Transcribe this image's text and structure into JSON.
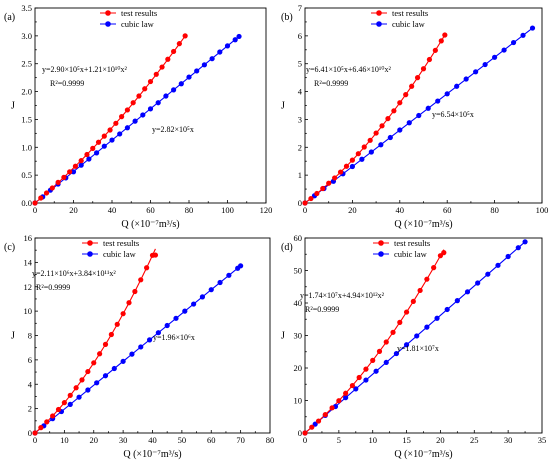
{
  "chart_data": [
    {
      "type": "scatter",
      "panel_tag": "(a)",
      "xlabel": "Q (×10⁻⁷m³/s)",
      "ylabel": "J",
      "xlim": [
        0,
        120
      ],
      "ylim": [
        0,
        3.5
      ],
      "xticks": [
        "0",
        "20",
        "40",
        "60",
        "80",
        "100",
        "120"
      ],
      "yticks": [
        "0.0",
        "0.5",
        "1.0",
        "1.5",
        "2.0",
        "2.5",
        "3.0",
        "3.5"
      ],
      "legend": {
        "placement": "top-center",
        "entries": [
          "test results",
          "cubic law"
        ]
      },
      "fit_equation": "y=2.90×10⁵x+1.21×10¹⁰x²",
      "r_squared": "R²=0.9999",
      "cubic_equation": "y=2.82×10⁵x",
      "series": [
        {
          "name": "test results",
          "color": "#ff0000",
          "x": [
            0,
            3,
            6,
            9,
            12,
            15,
            18,
            21,
            24,
            27,
            30,
            33,
            36,
            39,
            42,
            45,
            48,
            51,
            54,
            57,
            60,
            63,
            66,
            69,
            72,
            75,
            78
          ],
          "y": [
            0.0,
            0.09,
            0.18,
            0.27,
            0.37,
            0.46,
            0.56,
            0.66,
            0.76,
            0.87,
            0.98,
            1.09,
            1.2,
            1.31,
            1.43,
            1.55,
            1.67,
            1.8,
            1.92,
            2.05,
            2.18,
            2.31,
            2.44,
            2.58,
            2.72,
            2.86,
            3.0
          ]
        },
        {
          "name": "cubic law",
          "color": "#0000ff",
          "x": [
            0,
            4,
            8,
            12,
            16,
            20,
            24,
            28,
            32,
            36,
            40,
            44,
            48,
            52,
            56,
            60,
            64,
            68,
            72,
            76,
            80,
            84,
            88,
            92,
            96,
            100,
            104,
            106
          ],
          "y": [
            0.0,
            0.11,
            0.23,
            0.34,
            0.45,
            0.56,
            0.68,
            0.79,
            0.9,
            1.02,
            1.13,
            1.24,
            1.35,
            1.47,
            1.58,
            1.69,
            1.8,
            1.92,
            2.03,
            2.14,
            2.26,
            2.37,
            2.48,
            2.59,
            2.71,
            2.82,
            2.93,
            2.99
          ]
        }
      ],
      "fit_curve": {
        "a": 0.029,
        "b": 0.000121
      },
      "cubic_line": {
        "slope": 0.0282
      }
    },
    {
      "type": "scatter",
      "panel_tag": "(b)",
      "xlabel": "Q (×10⁻⁷m³/s)",
      "ylabel": "J",
      "xlim": [
        0,
        100
      ],
      "ylim": [
        0,
        7
      ],
      "xticks": [
        "0",
        "20",
        "40",
        "60",
        "80",
        "100"
      ],
      "yticks": [
        "0",
        "1",
        "2",
        "3",
        "4",
        "5",
        "6",
        "7"
      ],
      "legend": {
        "placement": "top-center",
        "entries": [
          "test results",
          "cubic law"
        ]
      },
      "fit_equation": "y=6.41×10⁵x+6.46×10¹⁰x²",
      "r_squared": "R²=0.9999",
      "cubic_equation": "y=6.54×10⁵x",
      "series": [
        {
          "name": "test results",
          "color": "#ff0000",
          "x": [
            0,
            2.5,
            5,
            7.5,
            10,
            12.5,
            15,
            17.5,
            20,
            22.5,
            25,
            27.5,
            30,
            32.5,
            35,
            37.5,
            40,
            42.5,
            45,
            47.5,
            50,
            52.5,
            55,
            57.5,
            59
          ],
          "y": [
            0.0,
            0.16,
            0.34,
            0.52,
            0.71,
            0.9,
            1.11,
            1.32,
            1.54,
            1.77,
            2.01,
            2.25,
            2.51,
            2.77,
            3.03,
            3.31,
            3.6,
            3.89,
            4.19,
            4.5,
            4.82,
            5.15,
            5.48,
            5.82,
            6.03
          ]
        },
        {
          "name": "cubic law",
          "color": "#0000ff",
          "x": [
            0,
            4,
            8,
            12,
            16,
            20,
            24,
            28,
            32,
            36,
            40,
            44,
            48,
            52,
            56,
            60,
            64,
            68,
            72,
            76,
            80,
            84,
            88,
            92,
            96
          ],
          "y": [
            0.0,
            0.26,
            0.52,
            0.78,
            1.05,
            1.31,
            1.57,
            1.83,
            2.09,
            2.35,
            2.62,
            2.88,
            3.14,
            3.4,
            3.66,
            3.92,
            4.19,
            4.45,
            4.71,
            4.97,
            5.23,
            5.49,
            5.76,
            6.02,
            6.28
          ]
        }
      ],
      "fit_curve": {
        "a": 0.0641,
        "b": 0.000646
      },
      "cubic_line": {
        "slope": 0.0654
      }
    },
    {
      "type": "scatter",
      "panel_tag": "(c)",
      "xlabel": "Q (×10⁻⁷m³/s)",
      "ylabel": "J",
      "xlim": [
        0,
        80
      ],
      "ylim": [
        0,
        16
      ],
      "xticks": [
        "0",
        "10",
        "20",
        "30",
        "40",
        "50",
        "60",
        "70",
        "80"
      ],
      "yticks": [
        "0",
        "2",
        "4",
        "6",
        "8",
        "10",
        "12",
        "14",
        "16"
      ],
      "legend": {
        "placement": "top-center",
        "entries": [
          "test results",
          "cubic law"
        ]
      },
      "fit_equation": "y=2.11×10⁶x+3.84×10¹¹x²",
      "r_squared": "R²=0.9999",
      "cubic_equation": "y=1.96×10⁶x",
      "series": [
        {
          "name": "test results",
          "color": "#ff0000",
          "x": [
            0,
            2,
            4,
            6,
            8,
            10,
            12,
            14,
            16,
            18,
            20,
            22,
            24,
            26,
            28,
            30,
            32,
            34,
            36,
            38,
            40,
            41
          ],
          "y": [
            0.0,
            0.44,
            0.91,
            1.4,
            1.93,
            2.49,
            3.09,
            3.71,
            4.36,
            5.04,
            5.76,
            6.5,
            7.27,
            8.08,
            8.92,
            9.79,
            10.69,
            11.61,
            12.57,
            13.56,
            14.58,
            14.6
          ]
        },
        {
          "name": "cubic law",
          "color": "#0000ff",
          "x": [
            0,
            3,
            6,
            9,
            12,
            15,
            18,
            21,
            24,
            27,
            30,
            33,
            36,
            39,
            42,
            45,
            48,
            51,
            54,
            57,
            60,
            63,
            66,
            69,
            70
          ],
          "y": [
            0.0,
            0.59,
            1.18,
            1.76,
            2.35,
            2.94,
            3.53,
            4.12,
            4.7,
            5.29,
            5.88,
            6.47,
            7.06,
            7.64,
            8.23,
            8.82,
            9.41,
            10.0,
            10.58,
            11.17,
            11.76,
            12.35,
            12.94,
            13.52,
            13.72
          ]
        }
      ],
      "fit_curve": {
        "a": 0.211,
        "b": 0.00384
      },
      "cubic_line": {
        "slope": 0.196
      }
    },
    {
      "type": "scatter",
      "panel_tag": "(d)",
      "xlabel": "Q (×10⁻⁷m³/s)",
      "ylabel": "J",
      "xlim": [
        0,
        35
      ],
      "ylim": [
        0,
        60
      ],
      "xticks": [
        "0",
        "5",
        "10",
        "15",
        "20",
        "25",
        "30",
        "35"
      ],
      "yticks": [
        "0",
        "10",
        "20",
        "30",
        "40",
        "50",
        "60"
      ],
      "legend": {
        "placement": "top-center",
        "entries": [
          "test results",
          "cubic law"
        ]
      },
      "fit_equation": "y=1.74×10⁷x+4.94×10¹²x²",
      "r_squared": "R²=0.9999",
      "cubic_equation": "y=1.81×10⁷x",
      "series": [
        {
          "name": "test results",
          "color": "#ff0000",
          "x": [
            0,
            1,
            2,
            3,
            4,
            5,
            6,
            7,
            8,
            9,
            10,
            11,
            12,
            13,
            14,
            15,
            16,
            17,
            18,
            19,
            20,
            20.5
          ],
          "y": [
            0.0,
            1.79,
            3.68,
            5.66,
            7.75,
            9.94,
            12.22,
            14.6,
            17.08,
            19.66,
            22.34,
            25.12,
            28.0,
            30.97,
            34.04,
            37.21,
            40.49,
            43.86,
            47.33,
            50.89,
            54.56,
            55.5
          ]
        },
        {
          "name": "cubic law",
          "color": "#0000ff",
          "x": [
            0,
            1.5,
            3,
            4.5,
            6,
            7.5,
            9,
            10.5,
            12,
            13.5,
            15,
            16.5,
            18,
            19.5,
            21,
            22.5,
            24,
            25.5,
            27,
            28.5,
            30,
            31.5,
            32.5
          ],
          "y": [
            0.0,
            2.72,
            5.43,
            8.15,
            10.86,
            13.58,
            16.29,
            19.01,
            21.72,
            24.44,
            27.15,
            29.87,
            32.58,
            35.3,
            38.01,
            40.73,
            43.44,
            46.16,
            48.87,
            51.59,
            54.3,
            57.02,
            58.83
          ]
        }
      ],
      "fit_curve": {
        "a": 1.74,
        "b": 0.0494
      },
      "cubic_line": {
        "slope": 1.81
      }
    }
  ]
}
